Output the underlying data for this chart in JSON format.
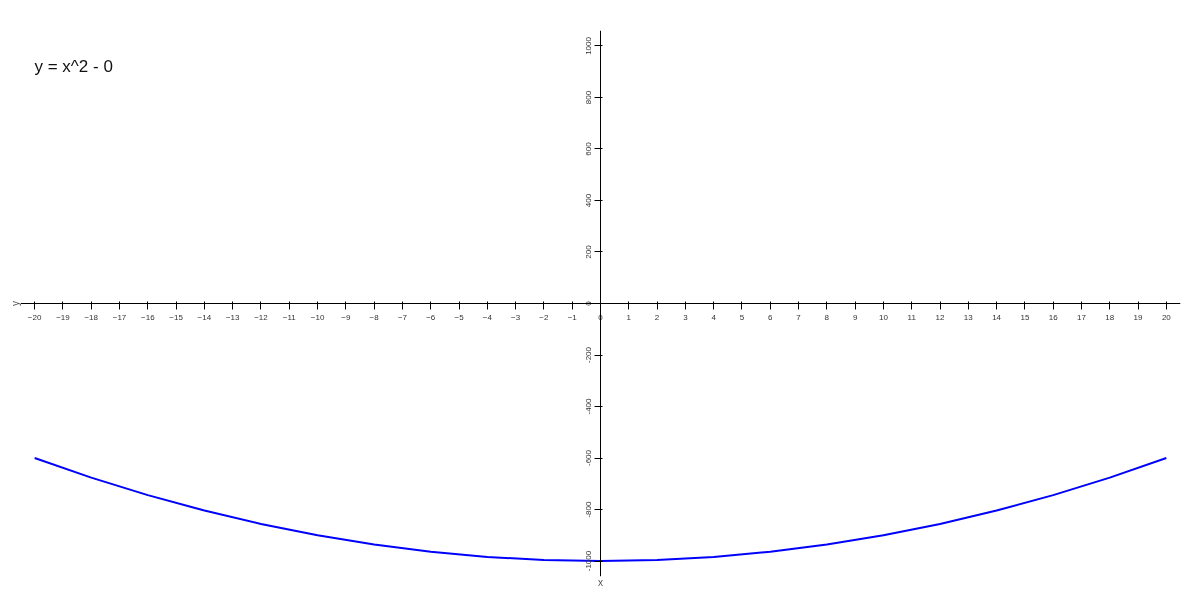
{
  "chart_data": {
    "type": "line",
    "title": "y = x^2 - 0",
    "xlabel": "x",
    "ylabel": "y",
    "x": [
      -20,
      -18,
      -16,
      -14,
      -12,
      -10,
      -8,
      -6,
      -4,
      -2,
      0,
      2,
      4,
      6,
      8,
      10,
      12,
      14,
      16,
      18,
      20
    ],
    "series": [
      {
        "color": "#0000ff",
        "values": [
          -600,
          -676,
          -744,
          -804,
          -856,
          -900,
          -936,
          -964,
          -984,
          -996,
          -1000,
          -996,
          -984,
          -964,
          -936,
          -900,
          -856,
          -804,
          -744,
          -676,
          -600
        ]
      }
    ],
    "xlim": [
      -20.5,
      20.5
    ],
    "ylim": [
      -1060,
      1060
    ],
    "xticks": [
      -20,
      -19,
      -18,
      -17,
      -16,
      -15,
      -14,
      -13,
      -12,
      -11,
      -10,
      -9,
      -8,
      -7,
      -6,
      -5,
      -4,
      -3,
      -2,
      -1,
      0,
      1,
      2,
      3,
      4,
      5,
      6,
      7,
      8,
      9,
      10,
      11,
      12,
      13,
      14,
      15,
      16,
      17,
      18,
      19,
      20
    ],
    "yticks": [
      -1000,
      -800,
      -600,
      -400,
      -200,
      0,
      200,
      400,
      600,
      800,
      1000
    ],
    "grid": false,
    "marker": "none",
    "line_style": "solid"
  }
}
